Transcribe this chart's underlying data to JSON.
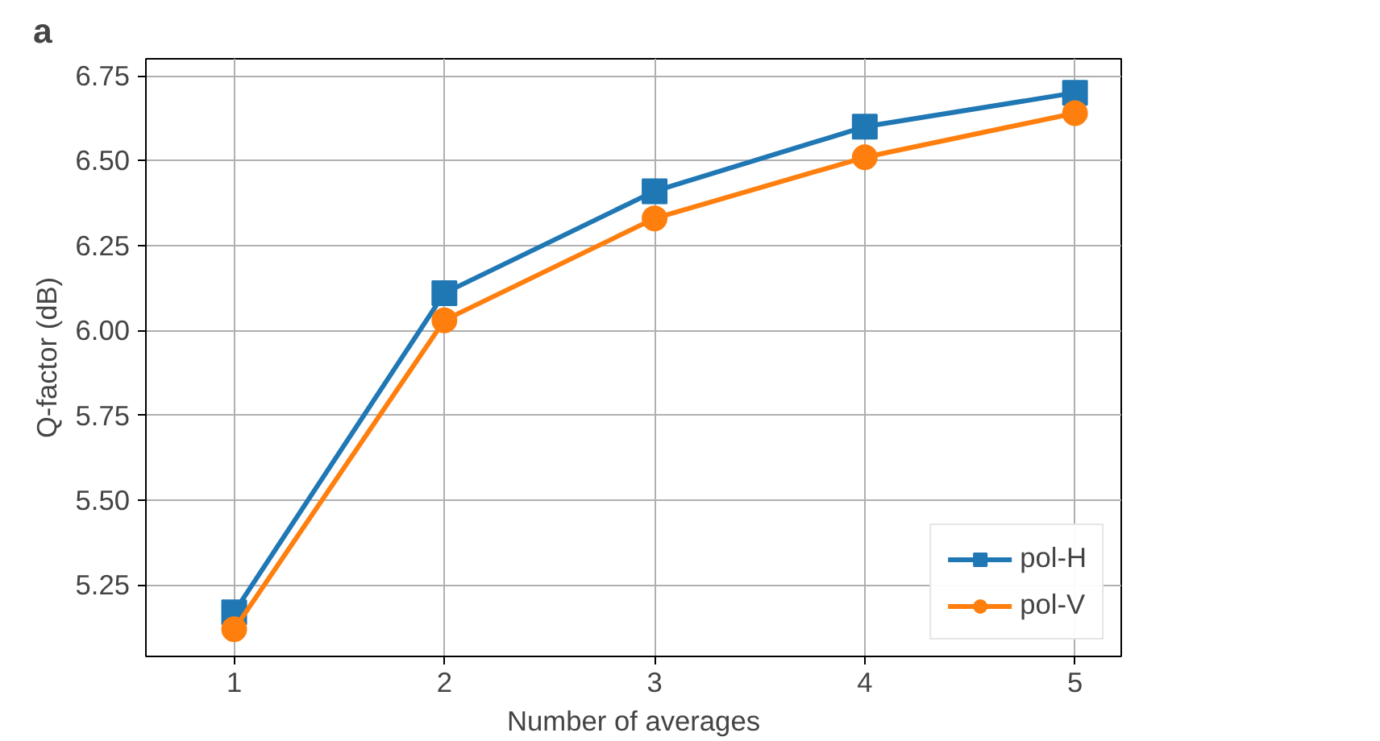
{
  "chart_data": {
    "type": "line",
    "xlabel": "Number of averages",
    "ylabel": "Q-factor (dB)",
    "x": [
      1,
      2,
      3,
      4,
      5
    ],
    "series": [
      {
        "name": "pol-H",
        "color": "#1f77b4",
        "marker": "square",
        "values": [
          5.17,
          6.11,
          6.41,
          6.6,
          6.7
        ]
      },
      {
        "name": "pol-V",
        "color": "#ff7f0e",
        "marker": "circle",
        "values": [
          5.12,
          6.03,
          6.33,
          6.51,
          6.64
        ]
      }
    ],
    "xlim": [
      0.58,
      5.22
    ],
    "ylim": [
      5.04,
      6.8
    ],
    "xticks": [
      1,
      2,
      3,
      4,
      5
    ],
    "yticks": [
      {
        "value": 5.25,
        "label": "5.25"
      },
      {
        "value": 5.5,
        "label": "5.50"
      },
      {
        "value": 5.75,
        "label": "5.75"
      },
      {
        "value": 6.0,
        "label": "6.00"
      },
      {
        "value": 6.25,
        "label": "6.25"
      },
      {
        "value": 6.5,
        "label": "6.50"
      },
      {
        "value": 6.75,
        "label": "6.75"
      }
    ],
    "grid": true,
    "legend": "bottom right",
    "line_style": "solid",
    "annotations": [
      "a"
    ]
  }
}
